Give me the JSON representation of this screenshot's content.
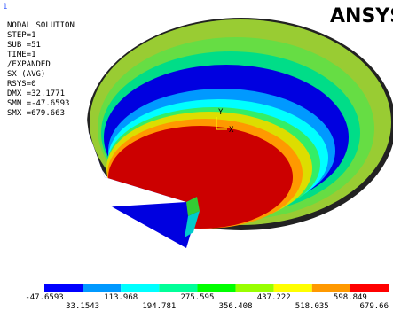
{
  "window_number": "1",
  "logo": "ANSYS",
  "info": [
    "NODAL SOLUTION",
    "STEP=1",
    "SUB =51",
    "TIME=1",
    "/EXPANDED",
    "SX       (AVG)",
    "RSYS=0",
    "DMX =32.1771",
    "SMN =-47.6593",
    "SMX =679.663"
  ],
  "axis_triad": {
    "y": "Y",
    "x": "X"
  },
  "legend": {
    "colors": [
      "#0000ff",
      "#0099ff",
      "#00ffff",
      "#00ff99",
      "#00ff00",
      "#99ff00",
      "#ffff00",
      "#ff9900",
      "#ff0000"
    ],
    "labels_top": [
      "-47.6593",
      "113.968",
      "275.595",
      "437.222",
      "598.849"
    ],
    "labels_bottom": [
      "33.1543",
      "194.781",
      "356.408",
      "518.035",
      "679.66"
    ]
  }
}
